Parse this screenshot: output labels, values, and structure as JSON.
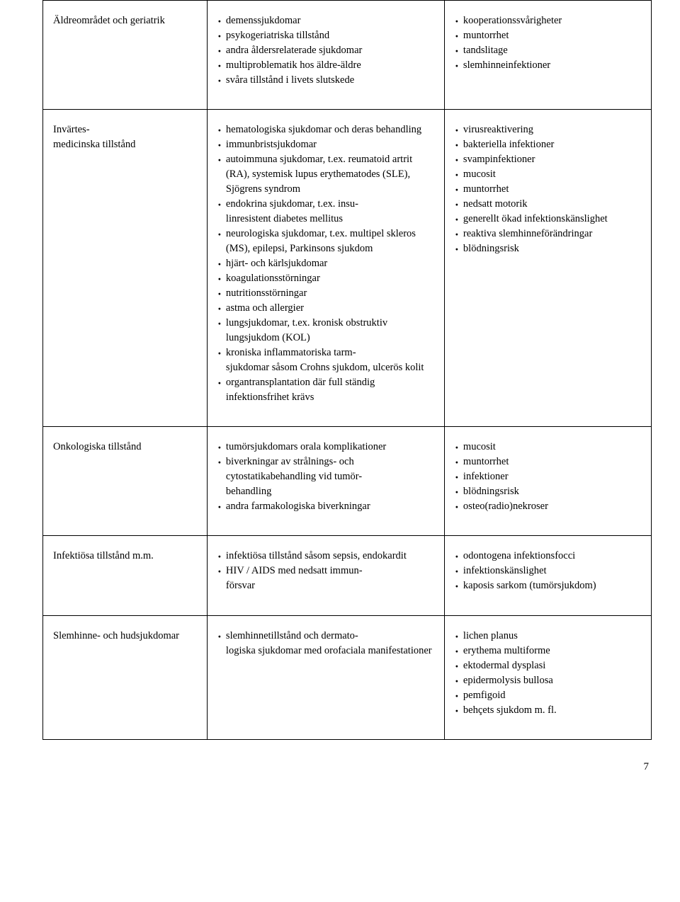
{
  "rows": [
    {
      "label": "Äldreområdet och geriatrik",
      "mid": [
        "demenssjukdomar",
        "psykogeriatriska tillstånd",
        "andra åldersrelaterade sjukdomar",
        "multiproblematik hos äldre-äldre",
        "svåra tillstånd i livets slutskede"
      ],
      "right": [
        "kooperationssvårigheter",
        "muntorrhet",
        "tandslitage",
        "slemhinneinfektioner"
      ]
    },
    {
      "label": "Invärtes-\nmedicinska tillstånd",
      "mid": [
        "hematologiska sjukdomar och deras behandling",
        "immunbristsjukdomar",
        "autoimmuna sjukdomar, t.ex. reumatoid artrit (RA), systemisk lupus erythematodes (SLE), Sjögrens syndrom",
        "endokrina sjukdomar, t.ex. insu-\nlinresistent diabetes mellitus",
        "neurologiska sjukdomar, t.ex. multipel skleros (MS), epilepsi, Parkinsons sjukdom",
        "hjärt- och kärlsjukdomar",
        "koagulationsstörningar",
        "nutritionsstörningar",
        "astma och allergier",
        "lungsjukdomar, t.ex. kronisk obstruktiv lungsjukdom (KOL)",
        "kroniska inflammatoriska tarm-\nsjukdomar såsom Crohns sjukdom, ulcerös kolit",
        "organtransplantation där full ständig infektionsfrihet krävs"
      ],
      "right": [
        "virusreaktivering",
        "bakteriella infektioner",
        "svampinfektioner",
        "mucosit",
        "muntorrhet",
        "nedsatt motorik",
        "generellt ökad infektionskänslighet",
        "reaktiva slemhinneförändringar",
        "blödningsrisk"
      ]
    },
    {
      "label": "Onkologiska tillstånd",
      "mid": [
        "tumörsjukdomars orala komplikationer",
        "biverkningar av strålnings- och cytostatikabehandling vid tumör-\nbehandling",
        "andra farmakologiska biverkningar"
      ],
      "right": [
        "mucosit",
        "muntorrhet",
        "infektioner",
        "blödningsrisk",
        "osteo(radio)nekroser"
      ]
    },
    {
      "label": "Infektiösa tillstånd m.m.",
      "mid": [
        "infektiösa tillstånd såsom sepsis, endokardit",
        "HIV / AIDS med nedsatt immun-\nförsvar"
      ],
      "right": [
        "odontogena infektionsfocci",
        "infektionskänslighet",
        "kaposis sarkom (tumörsjukdom)"
      ]
    },
    {
      "label": "Slemhinne- och hudsjukdomar",
      "mid": [
        "slemhinnetillstånd och dermato-\nlogiska sjukdomar med orofaciala manifestationer"
      ],
      "right": [
        "lichen planus",
        "erythema multiforme",
        "ektodermal dysplasi",
        "epidermolysis bullosa",
        "pemfigoid",
        "behçets sjukdom m. fl."
      ]
    }
  ],
  "page_number": "7"
}
